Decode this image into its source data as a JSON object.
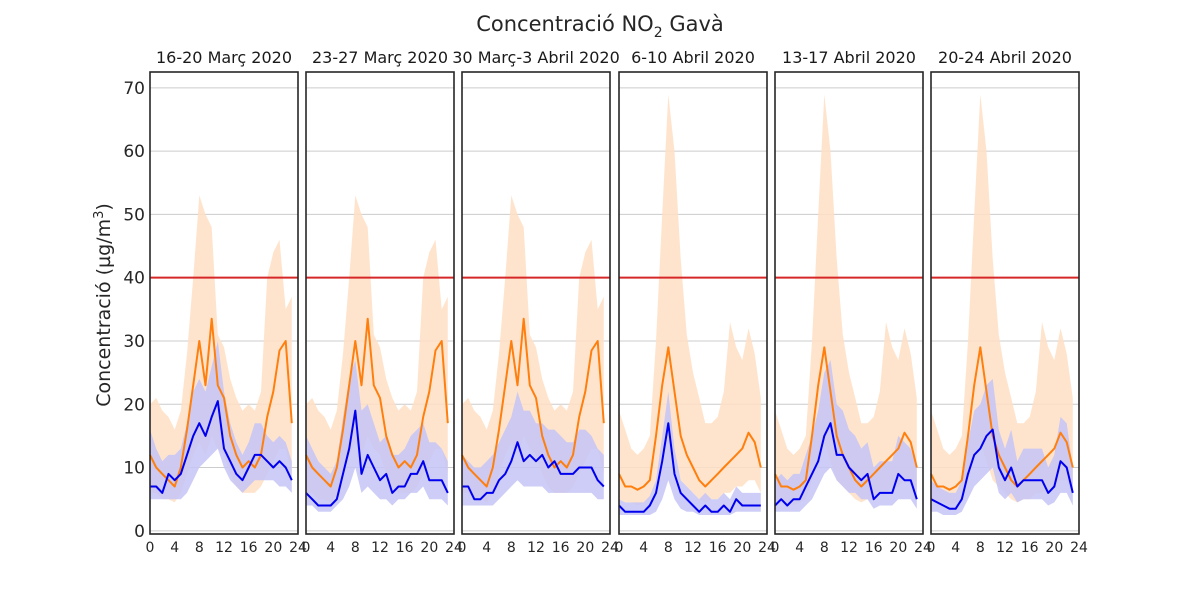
{
  "chart_data": {
    "type": "line",
    "title": "Concentració NO",
    "title_subscript": "2",
    "title_suffix": " Gavà",
    "ylabel": "Concentració (µg/m",
    "ylabel_superscript": "3",
    "ylabel_suffix": ")",
    "ylim": [
      -0.5,
      72.5
    ],
    "yticks": [
      "0",
      "10",
      "20",
      "30",
      "40",
      "50",
      "60",
      "70"
    ],
    "xlim": [
      0,
      24
    ],
    "xticks": [
      "0",
      "4",
      "8",
      "12",
      "16",
      "20",
      "24"
    ],
    "grid": true,
    "limit_line": {
      "value": 40,
      "color": "#d62728"
    },
    "colors": {
      "orange_line": "#ff7f0e",
      "orange_band": "#ffdfc4",
      "blue_line": "#0000ee",
      "blue_band": "#c4c4f6"
    },
    "panels": [
      {
        "title": "16-20 Març 2020",
        "blue_x": [
          0,
          1,
          2,
          3,
          4,
          5,
          6,
          7,
          8,
          9,
          10,
          11,
          12,
          13,
          14,
          15,
          16,
          17,
          18,
          19,
          20,
          21,
          22,
          23
        ],
        "blue": [
          7,
          7,
          6,
          9,
          8,
          9,
          12,
          15,
          17,
          15,
          18,
          20.5,
          13,
          11,
          9,
          8,
          10,
          12,
          12,
          11,
          10,
          11,
          10,
          8
        ],
        "blue_low": [
          5,
          5,
          5,
          5,
          5,
          5,
          6,
          8,
          10,
          11,
          12,
          13,
          10,
          8,
          7,
          6,
          7,
          8,
          8,
          8,
          8,
          7,
          7,
          6
        ],
        "blue_high": [
          16,
          13,
          11,
          12,
          12,
          13,
          17,
          22,
          24,
          22,
          26,
          30,
          22,
          17,
          14,
          12,
          14,
          17,
          17,
          15,
          14,
          15,
          14,
          11
        ],
        "orange_x": [
          0,
          1,
          2,
          3,
          4,
          5,
          6,
          7,
          8,
          9,
          10,
          11,
          12,
          13,
          14,
          15,
          16,
          17,
          18,
          19,
          20,
          21,
          22,
          23
        ],
        "orange": [
          12,
          10,
          9,
          8,
          7,
          10,
          16,
          23,
          30,
          23,
          33.5,
          23,
          21,
          15,
          12,
          10,
          11,
          10,
          12,
          18,
          22,
          28.5,
          30,
          17
        ],
        "orange_low": [
          6,
          6,
          5,
          5,
          4.5,
          6,
          9,
          12,
          14,
          12,
          15,
          13,
          12,
          9,
          7,
          6,
          6,
          6,
          7,
          9,
          11,
          13,
          13,
          9
        ],
        "orange_high": [
          20,
          21,
          19,
          18,
          16,
          19,
          28,
          40,
          53,
          50,
          48,
          31,
          29,
          24,
          21,
          19,
          20,
          19,
          22,
          40,
          44,
          46,
          35,
          37
        ]
      },
      {
        "title": "23-27 Març 2020",
        "blue_x": [
          0,
          1,
          2,
          3,
          4,
          5,
          6,
          7,
          8,
          9,
          10,
          11,
          12,
          13,
          14,
          15,
          16,
          17,
          18,
          19,
          20,
          21,
          22,
          23
        ],
        "blue": [
          6,
          5,
          4,
          4,
          4,
          5,
          9,
          13,
          19,
          9,
          12,
          10,
          8,
          9,
          6,
          7,
          7,
          9,
          9,
          11,
          8,
          8,
          8,
          6
        ],
        "blue_low": [
          4,
          4,
          3,
          3,
          3,
          4,
          5,
          7,
          10,
          6,
          7,
          6,
          5,
          5,
          4,
          5,
          5,
          6,
          6,
          7,
          5,
          5,
          5,
          4
        ],
        "blue_high": [
          15,
          13,
          11,
          10,
          9,
          11,
          18,
          24,
          27,
          19,
          20,
          17,
          14,
          15,
          12,
          12,
          13,
          15,
          16,
          17,
          14,
          14,
          13,
          11
        ],
        "orange_x": [
          0,
          1,
          2,
          3,
          4,
          5,
          6,
          7,
          8,
          9,
          10,
          11,
          12,
          13,
          14,
          15,
          16,
          17,
          18,
          19,
          20,
          21,
          22,
          23
        ],
        "orange": [
          12,
          10,
          9,
          8,
          7,
          10,
          16,
          23,
          30,
          23,
          33.5,
          23,
          21,
          15,
          12,
          10,
          11,
          10,
          12,
          18,
          22,
          28.5,
          30,
          17
        ],
        "orange_low": [
          6,
          6,
          5,
          5,
          4.5,
          6,
          9,
          12,
          14,
          12,
          15,
          13,
          12,
          9,
          7,
          6,
          6,
          6,
          7,
          9,
          11,
          13,
          13,
          9
        ],
        "orange_high": [
          20,
          21,
          19,
          18,
          16,
          19,
          28,
          40,
          53,
          50,
          48,
          31,
          29,
          24,
          21,
          19,
          20,
          19,
          22,
          40,
          44,
          46,
          35,
          37
        ]
      },
      {
        "title": "30 Març-3 Abril 2020",
        "blue_x": [
          0,
          1,
          2,
          3,
          4,
          5,
          6,
          7,
          8,
          9,
          10,
          11,
          12,
          13,
          14,
          15,
          16,
          17,
          18,
          19,
          20,
          21,
          22,
          23
        ],
        "blue": [
          7,
          7,
          5,
          5,
          6,
          6,
          8,
          9,
          11,
          14,
          11,
          12,
          11,
          12,
          10,
          11,
          9,
          9,
          9,
          10,
          10,
          10,
          8,
          7
        ],
        "blue_low": [
          4,
          4,
          4,
          4,
          4,
          4,
          5,
          6,
          7,
          8,
          7,
          7,
          7,
          7,
          6,
          6,
          6,
          6,
          6,
          6,
          6,
          6,
          5,
          5
        ],
        "blue_high": [
          12,
          11,
          10,
          10,
          11,
          12,
          14,
          16,
          18,
          22,
          19,
          19,
          17,
          17,
          16,
          16,
          15,
          14,
          14,
          16,
          16,
          15,
          13,
          12
        ],
        "orange_x": [
          0,
          1,
          2,
          3,
          4,
          5,
          6,
          7,
          8,
          9,
          10,
          11,
          12,
          13,
          14,
          15,
          16,
          17,
          18,
          19,
          20,
          21,
          22,
          23
        ],
        "orange": [
          12,
          10,
          9,
          8,
          7,
          10,
          16,
          23,
          30,
          23,
          33.5,
          23,
          21,
          15,
          12,
          10,
          11,
          10,
          12,
          18,
          22,
          28.5,
          30,
          17
        ],
        "orange_low": [
          6,
          6,
          5,
          5,
          4.5,
          6,
          9,
          12,
          14,
          12,
          15,
          13,
          12,
          9,
          7,
          6,
          6,
          6,
          7,
          9,
          11,
          13,
          13,
          9
        ],
        "orange_high": [
          20,
          21,
          19,
          18,
          16,
          19,
          28,
          40,
          53,
          50,
          48,
          31,
          29,
          24,
          21,
          19,
          20,
          19,
          22,
          40,
          44,
          46,
          35,
          37
        ]
      },
      {
        "title": "6-10 Abril 2020",
        "blue_x": [
          0,
          1,
          2,
          3,
          4,
          5,
          6,
          7,
          8,
          9,
          10,
          11,
          12,
          13,
          14,
          15,
          16,
          17,
          18,
          19,
          20,
          21,
          22,
          23
        ],
        "blue": [
          4,
          3,
          3,
          3,
          3,
          4,
          6,
          11,
          17,
          9,
          6,
          5,
          4,
          3,
          4,
          3,
          3,
          4,
          3,
          5,
          4,
          4,
          4,
          4
        ],
        "blue_low": [
          2.5,
          2.5,
          2.5,
          2.5,
          2.5,
          2.5,
          3,
          5,
          8,
          5,
          3.5,
          3,
          3,
          2.5,
          2.5,
          2.5,
          2.5,
          2.5,
          2.5,
          3,
          3,
          3,
          3,
          3
        ],
        "blue_high": [
          5,
          4.5,
          4.5,
          4.5,
          4.5,
          5.5,
          8,
          15,
          22,
          13,
          8,
          7,
          6,
          5,
          6,
          5,
          5,
          6,
          5,
          7,
          6,
          6,
          6,
          6
        ],
        "orange_x": [
          0,
          1,
          2,
          3,
          4,
          5,
          6,
          7,
          8,
          9,
          10,
          11,
          12,
          13,
          14,
          15,
          16,
          17,
          18,
          19,
          20,
          21,
          22,
          23
        ],
        "orange": [
          9,
          7,
          7,
          6.5,
          7,
          8,
          15,
          23,
          29,
          22,
          15,
          12,
          10,
          8,
          7,
          8,
          9,
          10,
          11,
          12,
          13,
          15.5,
          14,
          10
        ],
        "orange_low": [
          5,
          4.5,
          4.5,
          4,
          4.5,
          5,
          8,
          12,
          14,
          11,
          8,
          7,
          6,
          5,
          4.5,
          5,
          5,
          6,
          6,
          7,
          7,
          8,
          8,
          6
        ],
        "orange_high": [
          19,
          16,
          13,
          12,
          13,
          15,
          30,
          50,
          69,
          60,
          43,
          31,
          25,
          21,
          17,
          17,
          18,
          22,
          33,
          29,
          27,
          32,
          28,
          21
        ]
      },
      {
        "title": "13-17 Abril 2020",
        "blue_x": [
          0,
          1,
          2,
          3,
          4,
          5,
          6,
          7,
          8,
          9,
          10,
          11,
          12,
          13,
          14,
          15,
          16,
          17,
          18,
          19,
          20,
          21,
          22,
          23
        ],
        "blue": [
          4,
          5,
          4,
          5,
          5,
          7,
          9,
          11,
          15,
          17,
          12,
          12,
          10,
          9,
          8,
          9,
          5,
          6,
          6,
          6,
          9,
          8,
          8,
          5
        ],
        "blue_low": [
          3,
          3,
          3,
          3,
          3,
          4,
          5,
          7,
          9,
          10,
          8,
          7,
          6,
          6,
          5,
          5,
          3.5,
          4,
          4,
          4,
          5,
          5,
          5,
          3.5
        ],
        "blue_high": [
          8,
          9,
          8,
          9,
          9,
          12,
          15,
          19,
          25,
          27,
          20,
          19,
          16,
          15,
          13,
          14,
          10,
          11,
          11,
          11,
          15,
          14,
          13,
          10
        ],
        "orange_x": [
          0,
          1,
          2,
          3,
          4,
          5,
          6,
          7,
          8,
          9,
          10,
          11,
          12,
          13,
          14,
          15,
          16,
          17,
          18,
          19,
          20,
          21,
          22,
          23
        ],
        "orange": [
          9,
          7,
          7,
          6.5,
          7,
          8,
          15,
          23,
          29,
          22,
          15,
          12,
          10,
          8,
          7,
          8,
          9,
          10,
          11,
          12,
          13,
          15.5,
          14,
          10
        ],
        "orange_low": [
          5,
          4.5,
          4.5,
          4,
          4.5,
          5,
          8,
          12,
          14,
          11,
          8,
          7,
          6,
          5,
          4.5,
          5,
          5,
          6,
          6,
          7,
          7,
          8,
          8,
          6
        ],
        "orange_high": [
          19,
          16,
          13,
          12,
          13,
          15,
          30,
          50,
          69,
          60,
          43,
          31,
          25,
          21,
          17,
          17,
          18,
          22,
          33,
          29,
          27,
          32,
          28,
          21
        ]
      },
      {
        "title": "20-24 Abril 2020",
        "blue_x": [
          0,
          1,
          2,
          3,
          4,
          5,
          6,
          7,
          8,
          9,
          10,
          11,
          12,
          13,
          14,
          15,
          16,
          17,
          18,
          19,
          20,
          21,
          22,
          23
        ],
        "blue": [
          5,
          4.5,
          4,
          3.5,
          3.5,
          5,
          9,
          12,
          13,
          15,
          16,
          10,
          8,
          10,
          7,
          8,
          8,
          8,
          8,
          6,
          7,
          11,
          10,
          6
        ],
        "blue_low": [
          3,
          3,
          2.5,
          2.5,
          2.5,
          3,
          5,
          7,
          8,
          9,
          10,
          6,
          5,
          6,
          4.5,
          5,
          5,
          5,
          5,
          4,
          4.5,
          6,
          6,
          4
        ],
        "blue_high": [
          8,
          7,
          6.5,
          6,
          6,
          8,
          14,
          19,
          20,
          23,
          24,
          16,
          13,
          16,
          11,
          13,
          13,
          13,
          13,
          10,
          12,
          18,
          17,
          10
        ],
        "orange_x": [
          0,
          1,
          2,
          3,
          4,
          5,
          6,
          7,
          8,
          9,
          10,
          11,
          12,
          13,
          14,
          15,
          16,
          17,
          18,
          19,
          20,
          21,
          22,
          23
        ],
        "orange": [
          9,
          7,
          7,
          6.5,
          7,
          8,
          15,
          23,
          29,
          22,
          15,
          12,
          10,
          8,
          7,
          8,
          9,
          10,
          11,
          12,
          13,
          15.5,
          14,
          10
        ],
        "orange_low": [
          5,
          4.5,
          4.5,
          4,
          4.5,
          5,
          8,
          12,
          14,
          11,
          8,
          7,
          6,
          5,
          4.5,
          5,
          5,
          6,
          6,
          7,
          7,
          8,
          8,
          6
        ],
        "orange_high": [
          19,
          16,
          13,
          12,
          13,
          15,
          30,
          50,
          69,
          60,
          43,
          31,
          25,
          21,
          17,
          17,
          18,
          22,
          33,
          29,
          27,
          32,
          28,
          21
        ]
      }
    ]
  }
}
